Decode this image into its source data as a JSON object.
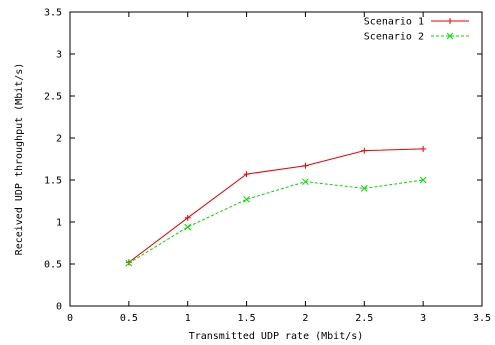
{
  "chart_data": {
    "type": "line",
    "title": "",
    "xlabel": "Transmitted UDP rate (Mbit/s)",
    "ylabel": "Received UDP throughput (Mbit/s)",
    "xlim": [
      0,
      3.5
    ],
    "ylim": [
      0,
      3.5
    ],
    "xticks": [
      "0",
      "0.5",
      "1",
      "1.5",
      "2",
      "2.5",
      "3",
      "3.5"
    ],
    "yticks": [
      "0",
      "0.5",
      "1",
      "1.5",
      "2",
      "2.5",
      "3",
      "3.5"
    ],
    "grid": false,
    "legend_position": "top-right",
    "series": [
      {
        "name": "Scenario 1",
        "color": "#ee0000",
        "line_style": "solid",
        "marker": "plus",
        "x": [
          0.5,
          1,
          1.5,
          2,
          2.5,
          3
        ],
        "y": [
          0.52,
          1.05,
          1.57,
          1.67,
          1.85,
          1.87
        ]
      },
      {
        "name": "Scenario 2",
        "color": "#00dd00",
        "line_style": "dashed",
        "marker": "cross",
        "x": [
          0.5,
          1,
          1.5,
          2,
          2.5,
          3
        ],
        "y": [
          0.51,
          0.94,
          1.27,
          1.48,
          1.4,
          1.5
        ]
      }
    ]
  }
}
